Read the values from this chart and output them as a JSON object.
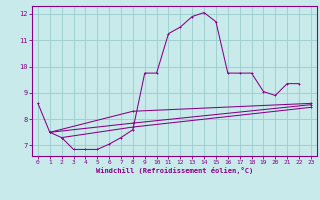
{
  "xlabel": "Windchill (Refroidissement éolien,°C)",
  "bg_color": "#c8eaea",
  "line_color": "#880088",
  "grid_color": "#99cccc",
  "xlim": [
    -0.5,
    23.5
  ],
  "ylim": [
    6.6,
    12.3
  ],
  "xticks": [
    0,
    1,
    2,
    3,
    4,
    5,
    6,
    7,
    8,
    9,
    10,
    11,
    12,
    13,
    14,
    15,
    16,
    17,
    18,
    19,
    20,
    21,
    22,
    23
  ],
  "yticks": [
    7,
    8,
    9,
    10,
    11,
    12
  ],
  "line1": {
    "x": [
      0,
      1,
      2,
      3,
      4,
      5,
      6,
      7,
      8,
      9,
      10,
      11,
      12,
      13,
      14,
      15,
      16,
      17,
      18,
      19,
      20,
      21,
      22
    ],
    "y": [
      8.6,
      7.5,
      7.3,
      6.85,
      6.85,
      6.85,
      7.05,
      7.3,
      7.6,
      9.75,
      9.75,
      11.25,
      11.5,
      11.9,
      12.05,
      11.7,
      9.75,
      9.75,
      9.75,
      9.05,
      8.9,
      9.35,
      9.35
    ]
  },
  "line2": {
    "x": [
      1,
      8,
      23
    ],
    "y": [
      7.5,
      8.3,
      8.6
    ]
  },
  "line3": {
    "x": [
      1,
      8,
      23
    ],
    "y": [
      7.5,
      7.85,
      8.55
    ]
  },
  "line4": {
    "x": [
      2,
      8,
      23
    ],
    "y": [
      7.3,
      7.7,
      8.45
    ]
  }
}
